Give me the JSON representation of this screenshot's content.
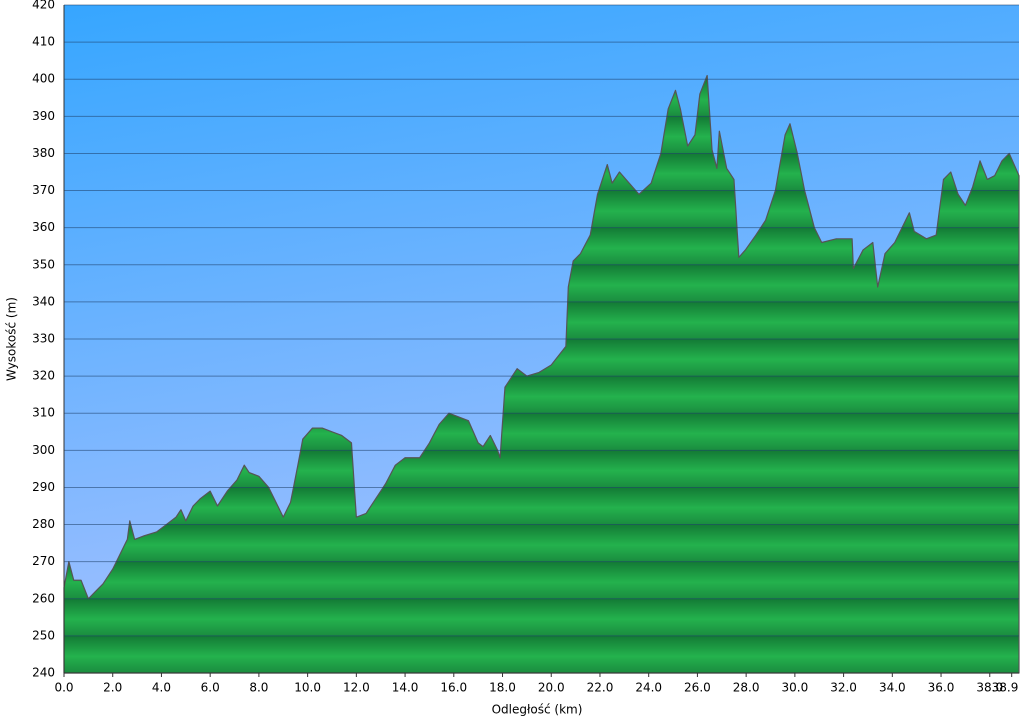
{
  "chart_data": {
    "type": "area",
    "x_label": "Odległość   (km)",
    "y_label": "Wysokość (m)",
    "x": [
      0.0,
      0.2,
      0.4,
      0.7,
      1.0,
      1.3,
      1.6,
      2.0,
      2.3,
      2.6,
      2.7,
      2.9,
      3.3,
      3.8,
      4.2,
      4.6,
      4.8,
      5.0,
      5.3,
      5.6,
      6.0,
      6.3,
      6.7,
      7.1,
      7.4,
      7.6,
      8.0,
      8.4,
      8.7,
      9.0,
      9.3,
      9.6,
      9.8,
      10.2,
      10.6,
      11.0,
      11.4,
      11.8,
      12.0,
      12.4,
      12.8,
      13.2,
      13.6,
      14.0,
      14.6,
      15.0,
      15.4,
      15.8,
      16.2,
      16.6,
      17.0,
      17.2,
      17.5,
      17.8,
      17.9,
      18.1,
      18.4,
      18.6,
      19.0,
      19.5,
      20.0,
      20.6,
      20.7,
      20.9,
      21.2,
      21.6,
      21.9,
      22.3,
      22.5,
      22.8,
      23.2,
      23.6,
      24.1,
      24.5,
      24.8,
      25.1,
      25.3,
      25.6,
      25.9,
      26.1,
      26.4,
      26.6,
      26.8,
      26.9,
      27.2,
      27.5,
      27.7,
      27.97,
      28.4,
      28.8,
      29.2,
      29.6,
      29.8,
      30.1,
      30.4,
      30.8,
      31.1,
      31.7,
      32.35,
      32.4,
      32.8,
      33.2,
      33.4,
      33.7,
      34.1,
      34.7,
      34.9,
      35.4,
      35.8,
      36.1,
      36.4,
      36.7,
      37.0,
      37.3,
      37.6,
      37.9,
      38.2,
      38.5,
      38.8,
      39.0,
      39.2
    ],
    "values": [
      263,
      270,
      265,
      265,
      260,
      262,
      264,
      268,
      272,
      276,
      281,
      276,
      277,
      278,
      280,
      282,
      284,
      281,
      285,
      287,
      289,
      285,
      289,
      292,
      296,
      294,
      293,
      290,
      286,
      282,
      286,
      296,
      303,
      306,
      306,
      305,
      304,
      302,
      282,
      283,
      287,
      291,
      296,
      298,
      298,
      302,
      307,
      310,
      309,
      308,
      302,
      301,
      304,
      300,
      298,
      317,
      320,
      322,
      320,
      321,
      323,
      328,
      344,
      351,
      353,
      358,
      369,
      377,
      372,
      375,
      372,
      369,
      372,
      380,
      392,
      397,
      392,
      382,
      385,
      396,
      401,
      381,
      376,
      386,
      376,
      373,
      352,
      354,
      358,
      362,
      370,
      385,
      388,
      380,
      370,
      360,
      356,
      357,
      357,
      349,
      354,
      356,
      344,
      353,
      356,
      364,
      359,
      357,
      358,
      373,
      375,
      369,
      366,
      371,
      378,
      373,
      374,
      378,
      380,
      377,
      374
    ],
    "color": "#1f9e45",
    "xlim": [
      0,
      39.2
    ],
    "ylim": [
      240,
      420
    ],
    "xticks": [
      {
        "value": 0,
        "label": "0.0"
      },
      {
        "value": 2,
        "label": "2.0"
      },
      {
        "value": 4,
        "label": "4.0"
      },
      {
        "value": 6,
        "label": "6.0"
      },
      {
        "value": 8,
        "label": "8.0"
      },
      {
        "value": 10,
        "label": "10.0"
      },
      {
        "value": 12,
        "label": "12.0"
      },
      {
        "value": 14,
        "label": "14.0"
      },
      {
        "value": 16,
        "label": "16.0"
      },
      {
        "value": 18,
        "label": "18.0"
      },
      {
        "value": 20,
        "label": "20.0"
      },
      {
        "value": 22,
        "label": "22.0"
      },
      {
        "value": 24,
        "label": "24.0"
      },
      {
        "value": 26,
        "label": "26.0"
      },
      {
        "value": 28,
        "label": "28.0"
      },
      {
        "value": 30,
        "label": "30.0"
      },
      {
        "value": 32,
        "label": "32.0"
      },
      {
        "value": 34,
        "label": "34.0"
      },
      {
        "value": 36,
        "label": "36.0"
      },
      {
        "value": 38,
        "label": "38.0"
      },
      {
        "value": 38.9,
        "label": "38.9"
      }
    ],
    "yticks": [
      240,
      250,
      260,
      270,
      280,
      290,
      300,
      310,
      320,
      330,
      340,
      350,
      360,
      370,
      380,
      390,
      400,
      410,
      420
    ],
    "grid": true
  }
}
